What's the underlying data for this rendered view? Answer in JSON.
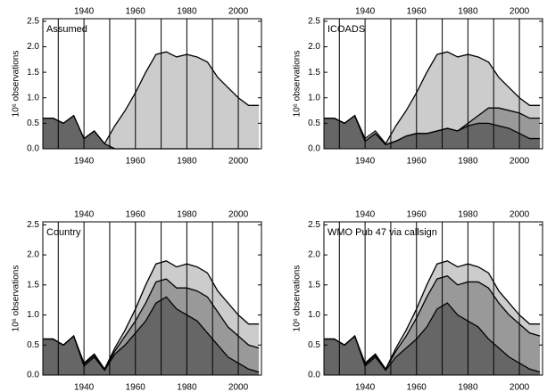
{
  "chart_data": [
    {
      "type": "area",
      "label": "Assumed",
      "ylabel": "10⁶ observations",
      "x": [
        1924,
        1928,
        1932,
        1936,
        1940,
        1944,
        1948,
        1952,
        1956,
        1960,
        1964,
        1968,
        1972,
        1976,
        1980,
        1984,
        1988,
        1992,
        1996,
        2000,
        2004,
        2008
      ],
      "series": [
        {
          "color": "#666666",
          "values": [
            0.6,
            0.6,
            0.5,
            0.65,
            0.2,
            0.35,
            0.1,
            0,
            0,
            0,
            0,
            0,
            0,
            0,
            0,
            0,
            0,
            0,
            0,
            0,
            0,
            0
          ]
        },
        {
          "color": "#cccccc",
          "values": [
            0,
            0,
            0,
            0,
            0,
            0,
            0,
            0.45,
            0.75,
            1.1,
            1.5,
            1.85,
            1.9,
            1.8,
            1.85,
            1.8,
            1.7,
            1.4,
            1.2,
            1.0,
            0.85,
            0.85
          ]
        }
      ],
      "xlim": [
        1924,
        2009
      ],
      "xticks": [
        1940,
        1960,
        1980,
        2000
      ],
      "xgrid": [
        1930,
        1940,
        1950,
        1960,
        1970,
        1980,
        1990,
        2000
      ],
      "ylim": [
        0,
        2.55
      ],
      "yticks": [
        {
          "value": 0,
          "label": "0.0"
        },
        0.5,
        {
          "value": 1,
          "label": "1.0"
        },
        1.5,
        {
          "value": 2,
          "label": "2.0"
        },
        2.5
      ]
    },
    {
      "type": "area",
      "label": "ICOADS",
      "ylabel": "10⁶ observations",
      "x": [
        1924,
        1928,
        1932,
        1936,
        1940,
        1944,
        1948,
        1952,
        1956,
        1960,
        1964,
        1968,
        1972,
        1976,
        1980,
        1984,
        1988,
        1992,
        1996,
        2000,
        2004,
        2008
      ],
      "series": [
        {
          "color": "#666666",
          "values": [
            0.6,
            0.6,
            0.5,
            0.65,
            0.15,
            0.3,
            0.08,
            0.15,
            0.25,
            0.3,
            0.3,
            0.35,
            0.4,
            0.35,
            0.45,
            0.5,
            0.5,
            0.45,
            0.4,
            0.3,
            0.2,
            0.2
          ]
        },
        {
          "color": "#999999",
          "values": [
            0,
            0,
            0,
            0,
            0,
            0,
            0,
            0,
            0,
            0,
            0,
            0,
            0,
            0,
            0.05,
            0.15,
            0.3,
            0.35,
            0.35,
            0.4,
            0.4,
            0.4
          ]
        },
        {
          "color": "#cccccc",
          "values": [
            0,
            0,
            0,
            0,
            0.05,
            0.05,
            0.02,
            0.3,
            0.5,
            0.8,
            1.2,
            1.5,
            1.5,
            1.45,
            1.35,
            1.15,
            0.9,
            0.6,
            0.45,
            0.3,
            0.25,
            0.25
          ]
        }
      ],
      "xlim": [
        1924,
        2009
      ],
      "xticks": [
        1940,
        1960,
        1980,
        2000
      ],
      "xgrid": [
        1930,
        1940,
        1950,
        1960,
        1970,
        1980,
        1990,
        2000
      ],
      "ylim": [
        0,
        2.55
      ],
      "yticks": [
        {
          "value": 0,
          "label": "0.0"
        },
        0.5,
        {
          "value": 1,
          "label": "1.0"
        },
        1.5,
        {
          "value": 2,
          "label": "2.0"
        },
        2.5
      ]
    },
    {
      "type": "area",
      "label": "Country",
      "ylabel": "10⁶ observations",
      "x": [
        1924,
        1928,
        1932,
        1936,
        1940,
        1944,
        1948,
        1952,
        1956,
        1960,
        1964,
        1968,
        1972,
        1976,
        1980,
        1984,
        1988,
        1992,
        1996,
        2000,
        2004,
        2008
      ],
      "series": [
        {
          "color": "#666666",
          "values": [
            0.6,
            0.6,
            0.5,
            0.65,
            0.15,
            0.3,
            0.08,
            0.35,
            0.5,
            0.7,
            0.9,
            1.2,
            1.3,
            1.1,
            1.0,
            0.9,
            0.7,
            0.5,
            0.3,
            0.2,
            0.1,
            0.05
          ]
        },
        {
          "color": "#999999",
          "values": [
            0,
            0,
            0,
            0,
            0.03,
            0.03,
            0.02,
            0.05,
            0.15,
            0.2,
            0.3,
            0.35,
            0.3,
            0.35,
            0.45,
            0.5,
            0.6,
            0.55,
            0.5,
            0.45,
            0.4,
            0.4
          ]
        },
        {
          "color": "#cccccc",
          "values": [
            0,
            0,
            0,
            0,
            0.02,
            0.02,
            0,
            0.05,
            0.1,
            0.2,
            0.3,
            0.3,
            0.3,
            0.35,
            0.4,
            0.4,
            0.4,
            0.35,
            0.4,
            0.35,
            0.35,
            0.4
          ]
        }
      ],
      "xlim": [
        1924,
        2009
      ],
      "xticks": [
        1940,
        1960,
        1980,
        2000
      ],
      "xgrid": [
        1930,
        1940,
        1950,
        1960,
        1970,
        1980,
        1990,
        2000
      ],
      "ylim": [
        0,
        2.55
      ],
      "yticks": [
        {
          "value": 0,
          "label": "0.0"
        },
        0.5,
        {
          "value": 1,
          "label": "1.0"
        },
        1.5,
        {
          "value": 2,
          "label": "2.0"
        },
        2.5
      ]
    },
    {
      "type": "area",
      "label": "WMO Pub 47 via callsign",
      "ylabel": "10⁶ observations",
      "x": [
        1924,
        1928,
        1932,
        1936,
        1940,
        1944,
        1948,
        1952,
        1956,
        1960,
        1964,
        1968,
        1972,
        1976,
        1980,
        1984,
        1988,
        1992,
        1996,
        2000,
        2004,
        2008
      ],
      "series": [
        {
          "color": "#666666",
          "values": [
            0.6,
            0.6,
            0.5,
            0.65,
            0.15,
            0.3,
            0.08,
            0.3,
            0.45,
            0.6,
            0.8,
            1.1,
            1.2,
            1.0,
            0.9,
            0.8,
            0.6,
            0.45,
            0.3,
            0.2,
            0.1,
            0.05
          ]
        },
        {
          "color": "#999999",
          "values": [
            0,
            0,
            0,
            0,
            0.03,
            0.03,
            0.02,
            0.1,
            0.2,
            0.35,
            0.5,
            0.5,
            0.45,
            0.5,
            0.65,
            0.75,
            0.85,
            0.75,
            0.7,
            0.65,
            0.6,
            0.6
          ]
        },
        {
          "color": "#cccccc",
          "values": [
            0,
            0,
            0,
            0,
            0.02,
            0.02,
            0,
            0.05,
            0.1,
            0.15,
            0.2,
            0.25,
            0.25,
            0.3,
            0.3,
            0.25,
            0.25,
            0.2,
            0.2,
            0.15,
            0.15,
            0.2
          ]
        }
      ],
      "xlim": [
        1924,
        2009
      ],
      "xticks": [
        1940,
        1960,
        1980,
        2000
      ],
      "xgrid": [
        1930,
        1940,
        1950,
        1960,
        1970,
        1980,
        1990,
        2000
      ],
      "ylim": [
        0,
        2.55
      ],
      "yticks": [
        {
          "value": 0,
          "label": "0.0"
        },
        0.5,
        {
          "value": 1,
          "label": "1.0"
        },
        1.5,
        {
          "value": 2,
          "label": "2.0"
        },
        2.5
      ]
    }
  ]
}
